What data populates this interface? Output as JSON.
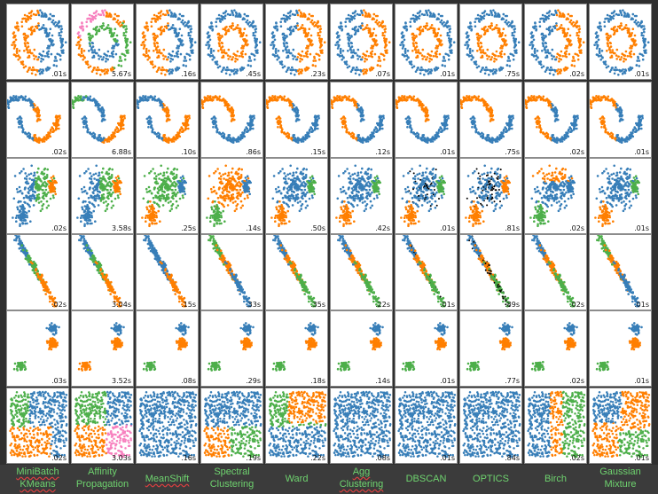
{
  "chart_data": {
    "type": "scatter",
    "layout": "small-multiples grid, 6 datasets (rows) x 10 clustering algorithms (columns)",
    "datasets": [
      "noisy circles",
      "noisy moons",
      "varied blobs",
      "anisotropic blobs",
      "blobs",
      "uniform"
    ],
    "algorithms": [
      {
        "label": [
          "MiniBatch",
          "KMeans"
        ],
        "spell_underlined": true
      },
      {
        "label": [
          "Affinity",
          "Propagation"
        ],
        "spell_underlined": false
      },
      {
        "label": [
          "MeanShift"
        ],
        "spell_underlined": true
      },
      {
        "label": [
          "Spectral",
          "Clustering"
        ],
        "spell_underlined": false
      },
      {
        "label": [
          "Ward"
        ],
        "spell_underlined": false
      },
      {
        "label": [
          "Agg",
          "Clustering"
        ],
        "spell_underlined": true
      },
      {
        "label": [
          "DBSCAN"
        ],
        "spell_underlined": false
      },
      {
        "label": [
          "OPTICS"
        ],
        "spell_underlined": false
      },
      {
        "label": [
          "Birch"
        ],
        "spell_underlined": false
      },
      {
        "label": [
          "Gaussian",
          "Mixture"
        ],
        "spell_underlined": false
      }
    ],
    "timings": [
      [
        ".01s",
        "5.67s",
        ".16s",
        ".45s",
        ".23s",
        ".07s",
        ".01s",
        ".75s",
        ".02s",
        ".01s"
      ],
      [
        ".02s",
        "6.88s",
        ".10s",
        ".86s",
        ".15s",
        ".12s",
        ".01s",
        ".75s",
        ".02s",
        ".01s"
      ],
      [
        ".02s",
        "3.58s",
        ".25s",
        ".14s",
        ".50s",
        ".42s",
        ".01s",
        ".81s",
        ".02s",
        ".01s"
      ],
      [
        ".02s",
        "3.04s",
        ".15s",
        ".33s",
        ".35s",
        ".22s",
        ".01s",
        ".89s",
        ".02s",
        ".01s"
      ],
      [
        ".03s",
        "3.52s",
        ".08s",
        ".29s",
        ".18s",
        ".14s",
        ".01s",
        ".77s",
        ".02s",
        ".01s"
      ],
      [
        ".02s",
        "3.03s",
        ".16s",
        ".19s",
        ".22s",
        ".08s",
        ".01s",
        ".84s",
        ".02s",
        ".01s"
      ]
    ],
    "cluster_colors": {
      "blue": "#377eb8",
      "orange": "#ff7f00",
      "green": "#4daf4a",
      "pink": "#f781bf",
      "noise": "#000000"
    },
    "label_color": "#6fd46f",
    "sheet_color": "#2f2f2f",
    "background_color": "#3b3b3b"
  }
}
